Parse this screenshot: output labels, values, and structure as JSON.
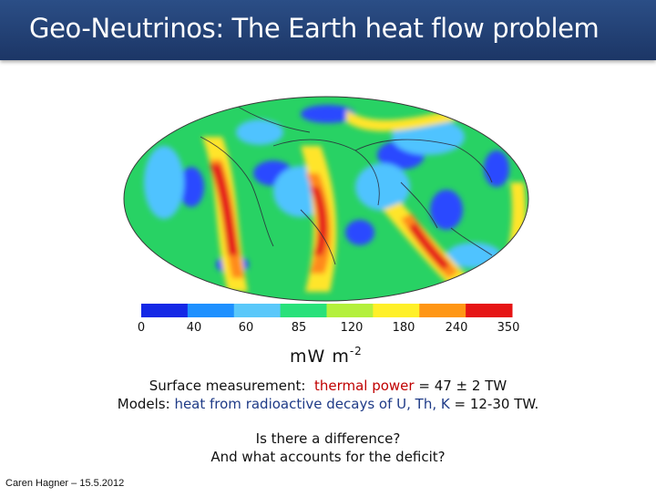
{
  "slide": {
    "title": "Geo-Neutrinos: The Earth heat flow problem",
    "colorbar": {
      "labels": [
        "0",
        "40",
        "60",
        "85",
        "120",
        "180",
        "240",
        "350"
      ],
      "colors": [
        "#1428e6",
        "#1e90ff",
        "#5ac8fa",
        "#28e17a",
        "#b4f03c",
        "#fff028",
        "#ff9614",
        "#e61414"
      ],
      "unit_base": "mW m",
      "unit_exp": "-2"
    },
    "map_colors": {
      "ocean_base": "#28d264",
      "cold": "#2a48ff",
      "cool": "#4fc3ff",
      "warm": "#ffe52a",
      "hot": "#ff8a1a",
      "very_hot": "#e51c1c"
    },
    "surface": {
      "label": "Surface measurement:",
      "highlight": "thermal power",
      "value": "= 47 ± 2 TW"
    },
    "models": {
      "label": "Models:",
      "highlight": "heat from radioactive decays of U, Th, K",
      "value": "= 12-30 TW."
    },
    "question1": "Is there a difference?",
    "question2": "And what accounts for the deficit?",
    "footer": "Caren Hagner – 15.5.2012"
  }
}
